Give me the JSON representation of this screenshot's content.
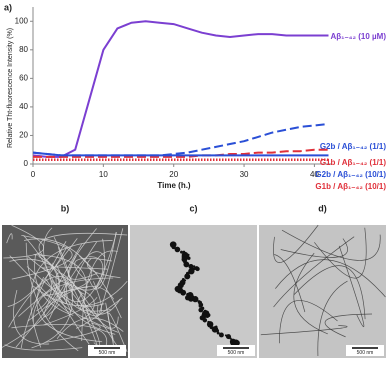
{
  "chart_data": {
    "type": "line",
    "panel_label": "a)",
    "y_label": "Relative Tht-fluorescence Intensity (%)",
    "x_label": "Time (h.)",
    "xlim": [
      0,
      42.5
    ],
    "ylim": [
      0,
      110
    ],
    "xticks": [
      0,
      10,
      20,
      30,
      40
    ],
    "yticks": [
      0,
      20,
      40,
      60,
      80,
      100
    ],
    "x": [
      0,
      2,
      4,
      6,
      8,
      10,
      12,
      14,
      16,
      18,
      20,
      22,
      24,
      26,
      28,
      30,
      32,
      34,
      36,
      38,
      40,
      42
    ],
    "series": [
      {
        "name": "Aβ₁₋₄₂ (10 µM)",
        "color": "#7b3fd1",
        "style": "solid",
        "values": [
          6,
          5,
          5,
          10,
          45,
          80,
          95,
          99,
          100,
          99,
          98,
          95,
          92,
          90,
          89,
          90,
          91,
          91,
          90,
          90,
          90,
          90
        ]
      },
      {
        "name": "G2b / Aβ₁₋₄₂ (1/1)",
        "color": "#2a4fd6",
        "style": "dashed",
        "values": [
          8,
          7,
          6,
          6,
          6,
          6,
          6,
          6,
          6,
          6,
          7,
          8,
          10,
          12,
          14,
          16,
          19,
          22,
          24,
          26,
          27,
          28
        ]
      },
      {
        "name": "G1b / Aβ₁₋₄₂ (1/1)",
        "color": "#e0303a",
        "style": "dashed",
        "values": [
          5,
          5,
          5,
          5,
          5,
          5,
          5,
          5,
          5,
          5,
          5,
          5,
          6,
          6,
          7,
          7,
          8,
          8,
          9,
          9,
          10,
          10
        ]
      },
      {
        "name": "G2b / Aβ₁₋₄₂ (10/1)",
        "color": "#2a4fd6",
        "style": "solid",
        "values": [
          8,
          7,
          6,
          6,
          6,
          6,
          6,
          6,
          6,
          6,
          6,
          6,
          6,
          6,
          6,
          6,
          6,
          6,
          6,
          6,
          6,
          6
        ]
      },
      {
        "name": "G1b / Aβ₁₋₄₂ (10/1)",
        "color": "#e0303a",
        "style": "dotted",
        "values": [
          3,
          3,
          3,
          3,
          3,
          3,
          3,
          3,
          3,
          3,
          3,
          3,
          3,
          3,
          3,
          3,
          3,
          3,
          3,
          3,
          3,
          3
        ]
      }
    ]
  },
  "panels": [
    {
      "label": "b)",
      "scale_bar": "500 nm"
    },
    {
      "label": "c)",
      "scale_bar": "500 nm"
    },
    {
      "label": "d)",
      "scale_bar": "500 nm"
    }
  ]
}
